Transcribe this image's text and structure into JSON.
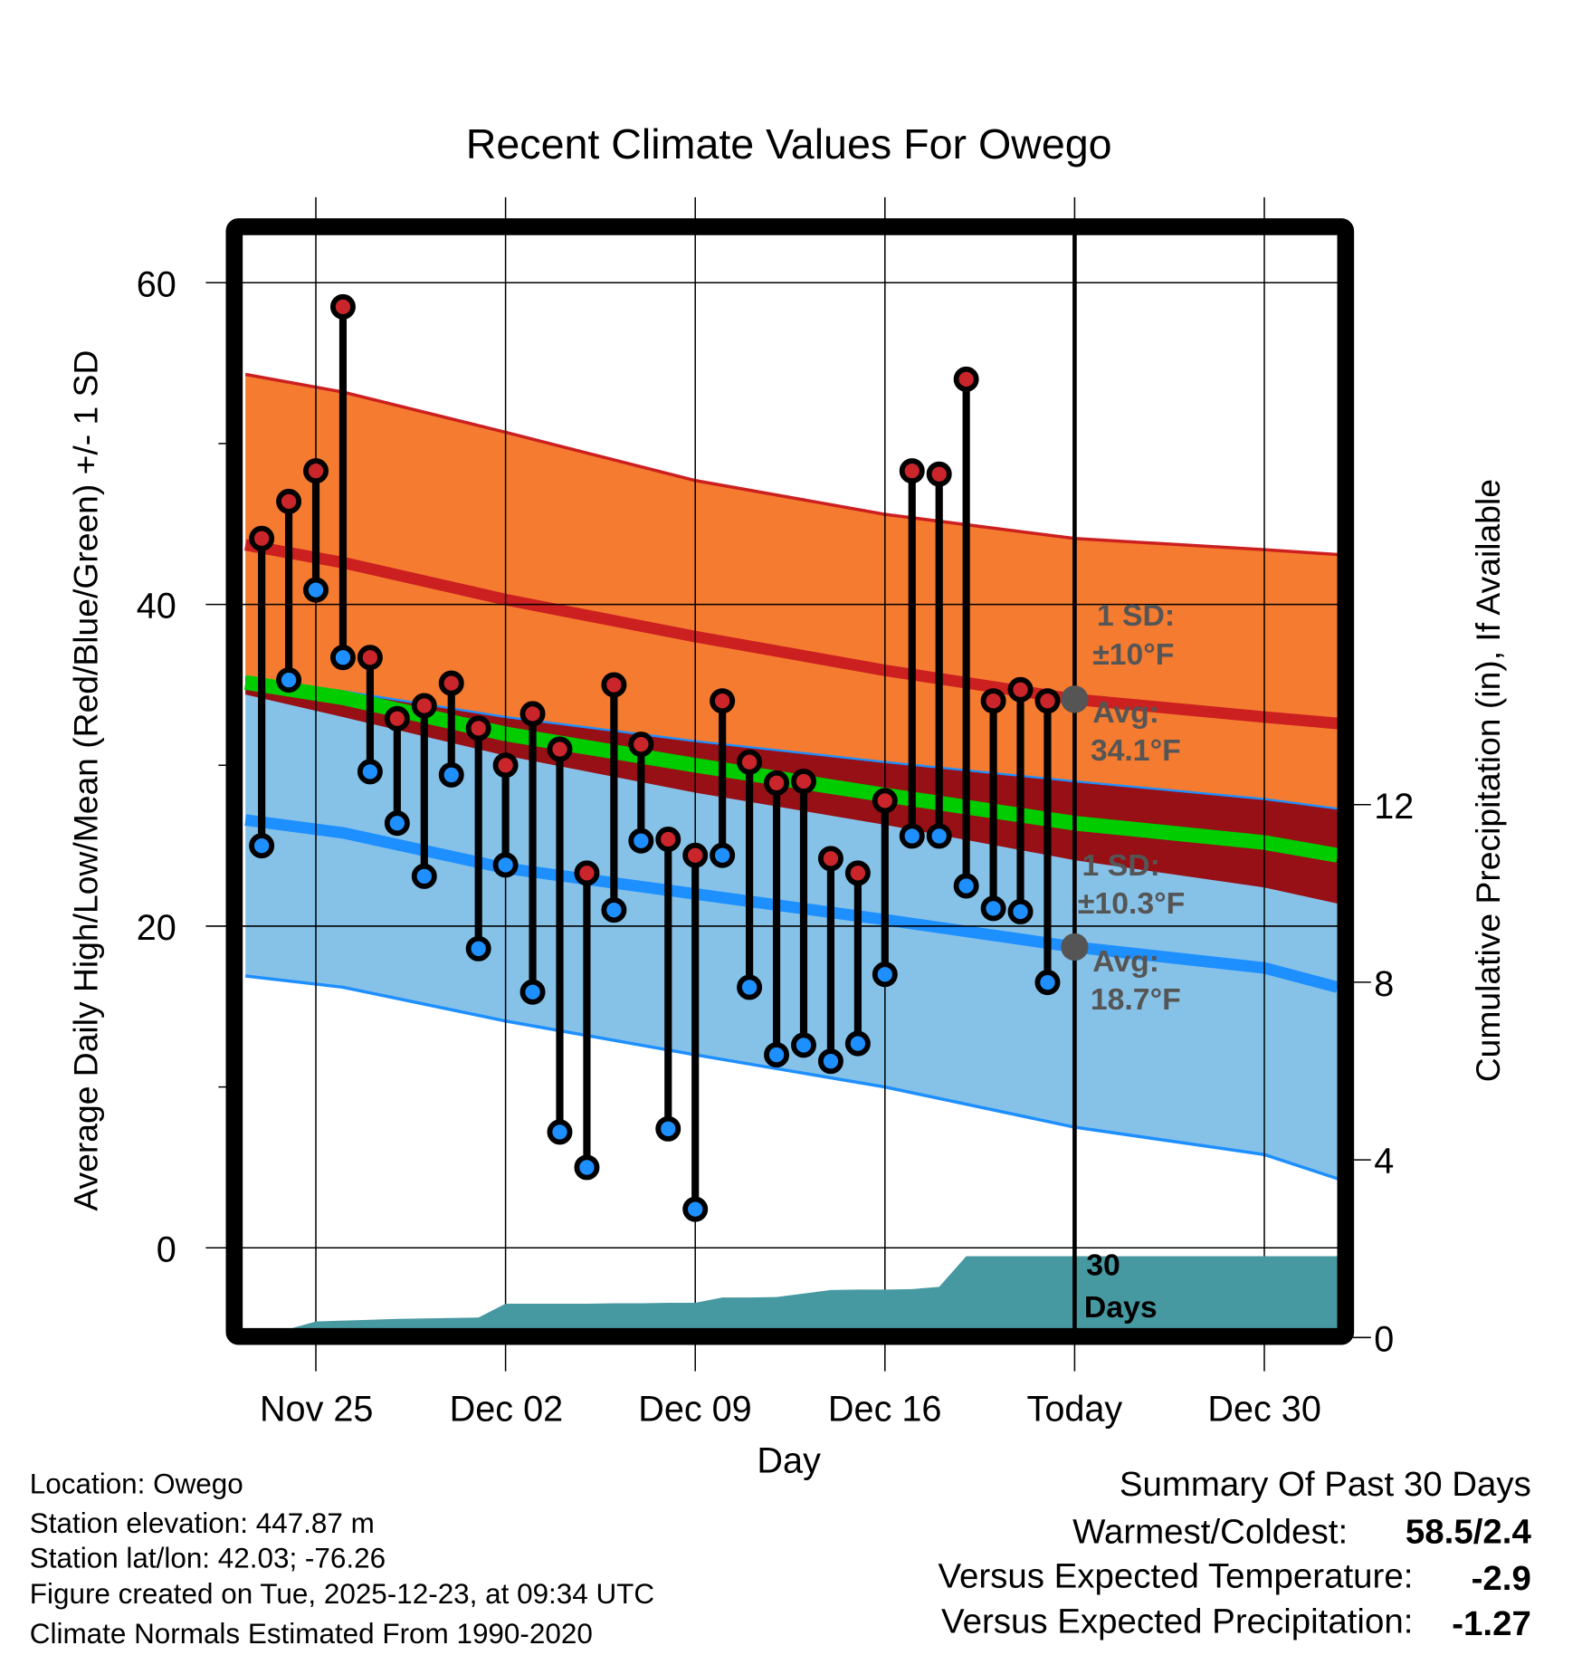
{
  "chart_data": {
    "type": "line",
    "title": "Recent Climate Values For Owego",
    "xlabel": "Day",
    "ylabel": "Average Daily High/Low/Mean (Red/Blue/Green) +/- 1 SD",
    "y2label": "Cumulative Precipitation (in), If Available",
    "ylim": [
      -5,
      63
    ],
    "y2lim": [
      0,
      23
    ],
    "y_ticks": [
      "60",
      "40",
      "20",
      "0"
    ],
    "y_tick_values": [
      60,
      40,
      20,
      0
    ],
    "y_minor_tick_values": [
      50,
      30,
      10
    ],
    "y2_ticks": [
      "12",
      "8",
      "4",
      "0"
    ],
    "y2_tick_values": [
      12,
      8,
      4,
      0
    ],
    "x_ticks": [
      "Nov 25",
      "Dec 02",
      "Dec 09",
      "Dec 16",
      "Today",
      "Dec 30"
    ],
    "x_tick_days": [
      -28,
      -21,
      -14,
      -7,
      0,
      7
    ],
    "x_range_days": [
      -30.6,
      9.7
    ],
    "grid": true,
    "observed": {
      "days": [
        -30,
        -29,
        -28,
        -27,
        -26,
        -25,
        -24,
        -23,
        -22,
        -21,
        -20,
        -19,
        -18,
        -17,
        -16,
        -15,
        -14,
        -13,
        -12,
        -11,
        -10,
        -9,
        -8,
        -7,
        -6,
        -5,
        -4,
        -3,
        -2,
        -1
      ],
      "high": [
        44.1,
        46.4,
        48.3,
        58.5,
        36.7,
        32.9,
        33.7,
        35.1,
        32.3,
        30.0,
        33.2,
        31.0,
        23.3,
        35.0,
        31.3,
        25.4,
        24.4,
        34.0,
        30.2,
        28.9,
        29.0,
        24.2,
        23.3,
        27.8,
        48.3,
        48.1,
        54.0,
        34.0,
        34.7,
        34.0
      ],
      "low": [
        25.0,
        35.3,
        40.9,
        36.7,
        29.6,
        26.4,
        23.1,
        29.4,
        18.6,
        23.8,
        15.9,
        7.2,
        5.0,
        21.0,
        25.3,
        7.4,
        2.4,
        24.4,
        16.2,
        12.0,
        12.6,
        11.6,
        12.7,
        17.0,
        25.6,
        25.6,
        22.5,
        21.1,
        20.9,
        16.5
      ],
      "precip_cumulative": [
        0,
        0,
        0.36,
        0.38,
        0.4,
        0.42,
        0.43,
        0.44,
        0.45,
        0.76,
        0.76,
        0.76,
        0.76,
        0.77,
        0.77,
        0.78,
        0.78,
        0.9,
        0.9,
        0.91,
        0.99,
        1.07,
        1.08,
        1.08,
        1.09,
        1.14,
        1.83,
        1.83,
        1.83,
        1.83
      ]
    },
    "normals": {
      "days": [
        -30.6,
        -27,
        -21,
        -14,
        -7,
        0,
        7,
        9.7
      ],
      "high_upper": [
        54.3,
        53.2,
        50.7,
        47.7,
        45.6,
        44.1,
        43.4,
        43.1
      ],
      "high_avg": [
        43.7,
        42.6,
        40.3,
        38.0,
        35.9,
        34.1,
        33.0,
        32.6
      ],
      "high_lower": [
        34.4,
        33.0,
        30.6,
        28.3,
        26.3,
        24.1,
        22.4,
        21.4
      ],
      "low_upper": [
        35.5,
        34.6,
        33.0,
        31.5,
        30.2,
        29.0,
        27.9,
        27.3
      ],
      "low_avg": [
        26.6,
        25.8,
        23.6,
        22.0,
        20.4,
        18.7,
        17.4,
        16.2
      ],
      "low_lower": [
        16.9,
        16.2,
        14.1,
        12.0,
        10.0,
        7.5,
        5.8,
        4.3
      ]
    },
    "annotations": {
      "high_sd_line1": "1 SD:",
      "high_sd_line2": "±10°F",
      "high_avg_line1": "Avg:",
      "high_avg_line2": "34.1°F",
      "high_avg_value": 34.1,
      "low_sd_line1": "1 SD:",
      "low_sd_line2": "±10.3°F",
      "low_avg_line1": "Avg:",
      "low_avg_line2": "18.7°F",
      "low_avg_value": 18.7,
      "window_line1": "30",
      "window_line2": "Days"
    },
    "colors": {
      "high_band": "#f47b30",
      "high_line": "#cc2020",
      "overlap": "#961016",
      "mean_line": "#00cc00",
      "low_band": "#86c2e8",
      "low_line": "#1e8fff",
      "precip": "#4799a1",
      "high_marker": "#c9252b",
      "low_marker": "#1e8fff",
      "avg_dot": "#555555"
    }
  },
  "footer": {
    "location": "Location: Owego",
    "elevation": "Station elevation: 447.87 m",
    "latlon": "Station lat/lon: 42.03; -76.26",
    "created": "Figure created on Tue, 2025-12-23, at 09:34 UTC",
    "normals": "Climate Normals Estimated From 1990-2020"
  },
  "summary": {
    "title": "Summary Of Past 30 Days",
    "warmest_coldest_label": "Warmest/Coldest:",
    "warmest_coldest_value": "58.5/2.4",
    "temp_label": "Versus Expected Temperature:",
    "temp_value": "-2.9",
    "temp_color": "#1e8fff",
    "precip_label": "Versus Expected Precipitation:",
    "precip_value": "-1.27",
    "precip_color": "#a0522d"
  }
}
